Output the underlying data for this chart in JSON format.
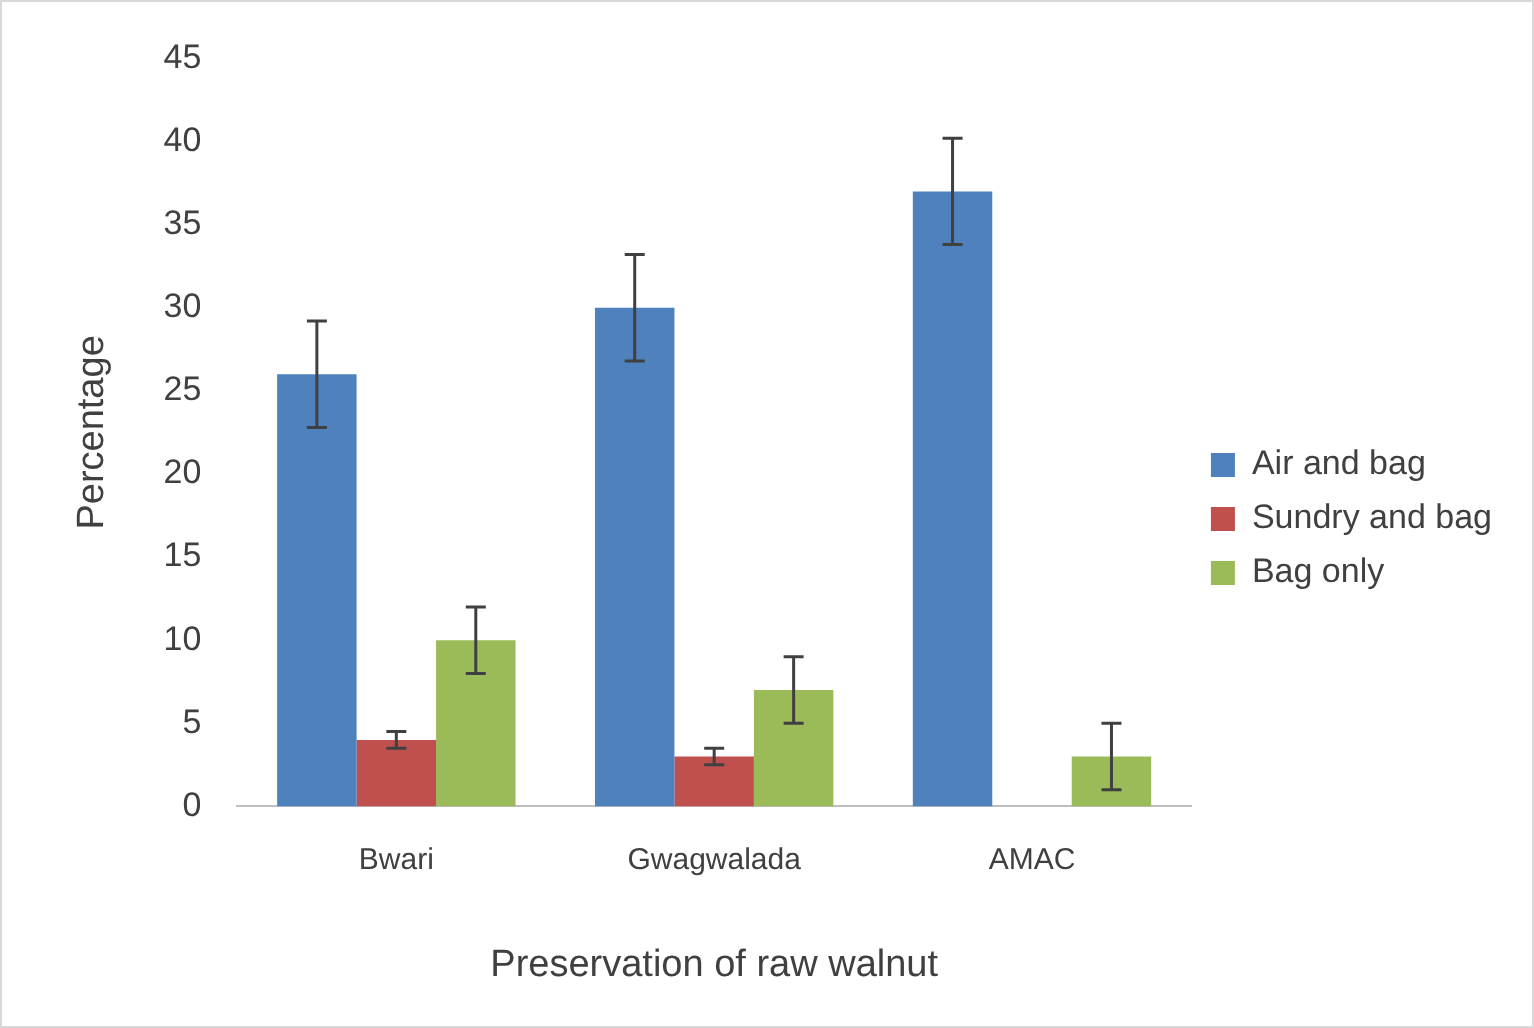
{
  "chart_data": {
    "type": "bar",
    "xlabel": "Preservation of raw walnut",
    "ylabel": "Percentage",
    "categories": [
      "Bwari",
      "Gwagwalada",
      "AMAC"
    ],
    "series": [
      {
        "name": "Air and bag",
        "color": "#4f81bd",
        "values": [
          26,
          30,
          37
        ],
        "errors": [
          3.2,
          3.2,
          3.2
        ]
      },
      {
        "name": "Sundry and bag",
        "color": "#c0504d",
        "values": [
          4,
          3,
          null
        ],
        "errors": [
          0.5,
          0.5,
          null
        ]
      },
      {
        "name": "Bag only",
        "color": "#9bbb59",
        "values": [
          10,
          7,
          3
        ],
        "errors": [
          2,
          2,
          2
        ]
      }
    ],
    "ylim": [
      0,
      45
    ],
    "yticks": [
      0,
      5,
      10,
      15,
      20,
      25,
      30,
      35,
      40,
      45
    ],
    "grid": false,
    "legend": "right"
  }
}
